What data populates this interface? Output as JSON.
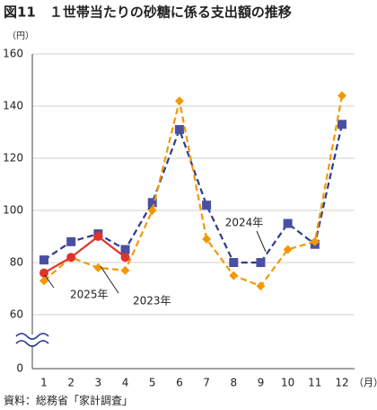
{
  "chart_data": {
    "type": "line",
    "title": "図11　１世帯当たりの砂糖に係る支出額の推移",
    "y_unit": "（円）",
    "x_unit": "（月）",
    "source": "資料：総務省「家計調査」",
    "categories": [
      "1",
      "2",
      "3",
      "4",
      "5",
      "6",
      "7",
      "8",
      "9",
      "10",
      "11",
      "12"
    ],
    "series": [
      {
        "name": "2024年",
        "color": "#2e3a92",
        "marker": "square",
        "dash": true,
        "values": [
          81,
          88,
          91,
          85,
          103,
          131,
          102,
          80,
          80,
          95,
          87,
          133
        ]
      },
      {
        "name": "2023年",
        "color": "#f39800",
        "marker": "diamond",
        "dash": true,
        "values": [
          73,
          82,
          78,
          77,
          100,
          142,
          89,
          75,
          71,
          85,
          88,
          144
        ]
      },
      {
        "name": "2025年",
        "color": "#e0332a",
        "marker": "circle",
        "dash": false,
        "values": [
          76,
          82,
          90,
          82,
          null,
          null,
          null,
          null,
          null,
          null,
          null,
          null
        ]
      }
    ],
    "ylim": [
      0,
      160
    ],
    "yticks": [
      0,
      60,
      80,
      100,
      120,
      140,
      160
    ],
    "axis_break": true,
    "grid": true
  }
}
